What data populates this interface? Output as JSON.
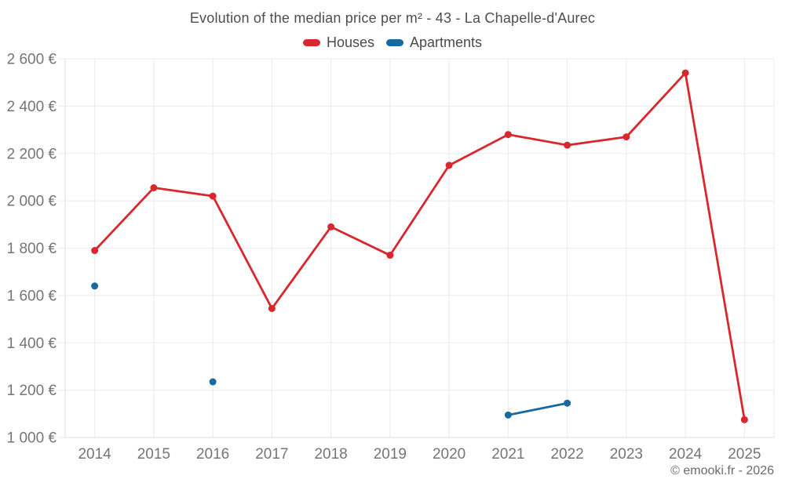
{
  "page": {
    "watermark": "© emooki.fr - 2026"
  },
  "chart_data": {
    "type": "line",
    "title": "Evolution of the median price per m² - 43 - La Chapelle-d'Aurec",
    "categories": [
      "2014",
      "2015",
      "2016",
      "2017",
      "2018",
      "2019",
      "2020",
      "2021",
      "2022",
      "2023",
      "2024",
      "2025"
    ],
    "series": [
      {
        "name": "Houses",
        "color": "#d9272e",
        "values": [
          1790,
          2055,
          2020,
          1545,
          1890,
          1770,
          2150,
          2280,
          2235,
          2270,
          2540,
          1075
        ]
      },
      {
        "name": "Apartments",
        "color": "#17699f",
        "values": [
          1640,
          null,
          1235,
          null,
          null,
          null,
          null,
          1095,
          1145,
          null,
          null,
          null
        ]
      }
    ],
    "ylim": [
      1000,
      2600
    ],
    "ytick_step": 200,
    "ytick_suffix": " €",
    "connect_gaps": false,
    "grid": true,
    "legend_position": "top",
    "colors": {
      "grid": "#ebebeb",
      "axis": "#dcdcdc",
      "tick_label": "#757575",
      "title": "#4e4e4e",
      "legend_label": "#4a4a4a",
      "watermark": "#6b6b6b"
    }
  }
}
